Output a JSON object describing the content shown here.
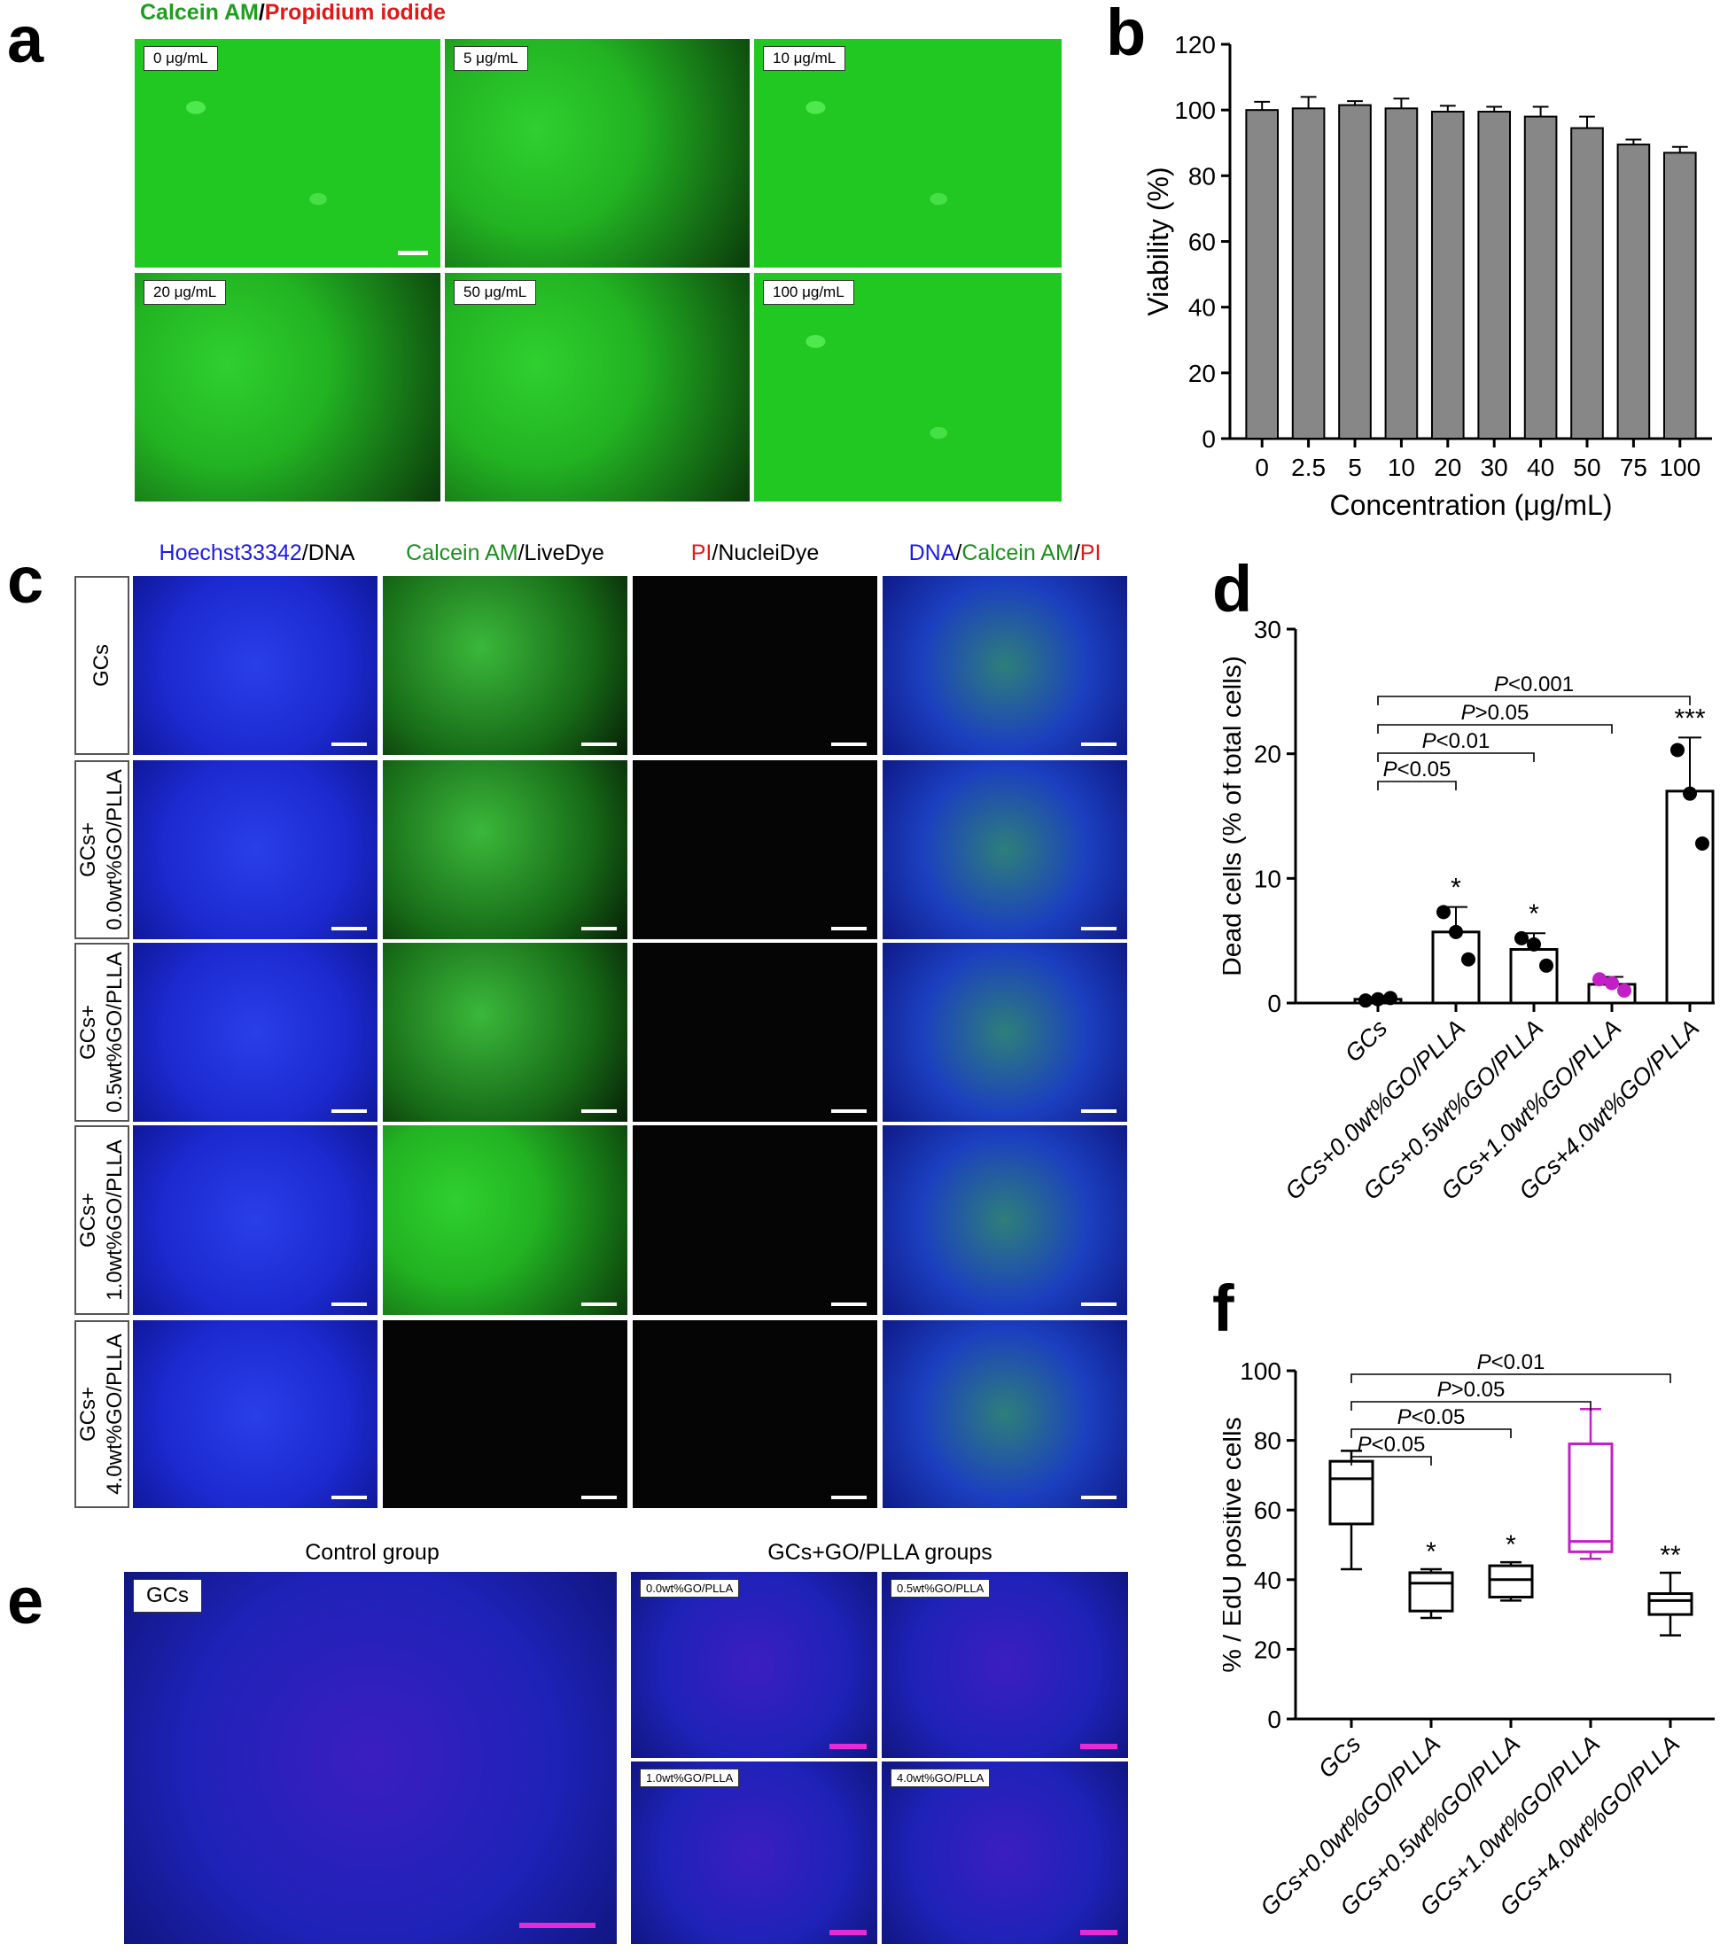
{
  "panel_labels": {
    "a": "a",
    "b": "b",
    "c": "c",
    "d": "d",
    "e": "e",
    "f": "f"
  },
  "panel_a": {
    "header_green": "Calcein AM",
    "header_sep": "/",
    "header_red": "Propidium iodide",
    "images": [
      "0 μg/mL",
      "5 μg/mL",
      "10 μg/mL",
      "20 μg/mL",
      "50 μg/mL",
      "100 μg/mL"
    ]
  },
  "panel_c": {
    "col1_blue": "Hoechst33342",
    "col1_rest": "/DNA",
    "col2_green": "Calcein AM",
    "col2_rest": "/LiveDye",
    "col3_red": "PI",
    "col3_rest": "/NucleiDye",
    "col4_blue": "DNA",
    "col4_sep1": "/",
    "col4_green": "Calcein AM",
    "col4_sep2": "/",
    "col4_red": "PI",
    "rows": [
      "GCs",
      "GCs+\n0.0wt%GO/PLLA",
      "GCs+\n0.5wt%GO/PLLA",
      "GCs+\n1.0wt%GO/PLLA",
      "GCs+\n4.0wt%GO/PLLA"
    ]
  },
  "panel_e": {
    "control_title": "Control group",
    "groups_title": "GCs+GO/PLLA groups",
    "control_label": "GCs",
    "group_labels": [
      "0.0wt%GO/PLLA",
      "0.5wt%GO/PLLA",
      "1.0wt%GO/PLLA",
      "4.0wt%GO/PLLA"
    ]
  },
  "chart_data": [
    {
      "panel": "b",
      "type": "bar",
      "xlabel": "Concentration (μg/mL)",
      "ylabel": "Viability (%)",
      "ylim": [
        0,
        120
      ],
      "yticks": [
        "0",
        "20",
        "40",
        "60",
        "80",
        "100",
        "120"
      ],
      "categories": [
        "0",
        "2.5",
        "5",
        "10",
        "20",
        "30",
        "40",
        "50",
        "75",
        "100"
      ],
      "values": [
        100,
        100.5,
        101.5,
        100.5,
        99.5,
        99.5,
        98,
        94.5,
        89.5,
        87
      ],
      "errors": [
        2.5,
        3.5,
        1.2,
        3.0,
        1.8,
        1.5,
        3.0,
        3.5,
        1.5,
        1.8
      ],
      "bar_color": "#878787"
    },
    {
      "panel": "d",
      "type": "bar",
      "ylabel": "Dead cells (% of total cells)",
      "ylim": [
        0,
        30
      ],
      "yticks": [
        "0",
        "10",
        "20",
        "30"
      ],
      "categories": [
        "GCs",
        "GCs+0.0wt%GO/PLLA",
        "GCs+0.5wt%GO/PLLA",
        "GCs+1.0wt%GO/PLLA",
        "GCs+4.0wt%GO/PLLA"
      ],
      "values": [
        0.3,
        5.7,
        4.3,
        1.5,
        17.0
      ],
      "errors": [
        0.15,
        2.0,
        1.3,
        0.6,
        4.3
      ],
      "points": [
        [
          0.2,
          0.3,
          0.4
        ],
        [
          7.3,
          5.7,
          3.5
        ],
        [
          5.2,
          4.7,
          3.0
        ],
        [
          1.9,
          1.6,
          1.0
        ],
        [
          20.3,
          16.8,
          12.8
        ]
      ],
      "point_colors": [
        "#000000",
        "#000000",
        "#000000",
        "#c21fc7",
        "#000000"
      ],
      "significance": [
        "",
        "*",
        "*",
        "",
        "***"
      ],
      "comparisons": [
        {
          "label_p": "P",
          "label_rest": "<0.05",
          "from": 0,
          "to": 1
        },
        {
          "label_p": "P",
          "label_rest": "<0.01",
          "from": 0,
          "to": 2
        },
        {
          "label_p": "P",
          "label_rest": ">0.05",
          "from": 0,
          "to": 3
        },
        {
          "label_p": "P",
          "label_rest": "<0.001",
          "from": 0,
          "to": 4
        }
      ]
    },
    {
      "panel": "f",
      "type": "box",
      "ylabel": "% / EdU positive cells",
      "ylim": [
        0,
        100
      ],
      "yticks": [
        "0",
        "20",
        "40",
        "60",
        "80",
        "100"
      ],
      "categories": [
        "GCs",
        "GCs+0.0wt%GO/PLLA",
        "GCs+0.5wt%GO/PLLA",
        "GCs+1.0wt%GO/PLLA",
        "GCs+4.0wt%GO/PLLA"
      ],
      "boxes": [
        {
          "min": 43,
          "q1": 56,
          "median": 69,
          "q3": 74,
          "max": 77
        },
        {
          "min": 29,
          "q1": 31,
          "median": 39,
          "q3": 42,
          "max": 43
        },
        {
          "min": 34,
          "q1": 35,
          "median": 40,
          "q3": 44,
          "max": 45
        },
        {
          "min": 46,
          "q1": 48,
          "median": 51,
          "q3": 79,
          "max": 89
        },
        {
          "min": 24,
          "q1": 30,
          "median": 34,
          "q3": 36,
          "max": 42
        }
      ],
      "box_colors": [
        "#000000",
        "#000000",
        "#000000",
        "#c21fc7",
        "#000000"
      ],
      "significance": [
        "",
        "*",
        "*",
        "",
        "**"
      ],
      "comparisons": [
        {
          "label_p": "P",
          "label_rest": "<0.05",
          "from": 0,
          "to": 1
        },
        {
          "label_p": "P",
          "label_rest": "<0.05",
          "from": 0,
          "to": 2
        },
        {
          "label_p": "P",
          "label_rest": ">0.05",
          "from": 0,
          "to": 3
        },
        {
          "label_p": "P",
          "label_rest": "<0.01",
          "from": 0,
          "to": 4
        }
      ]
    }
  ]
}
